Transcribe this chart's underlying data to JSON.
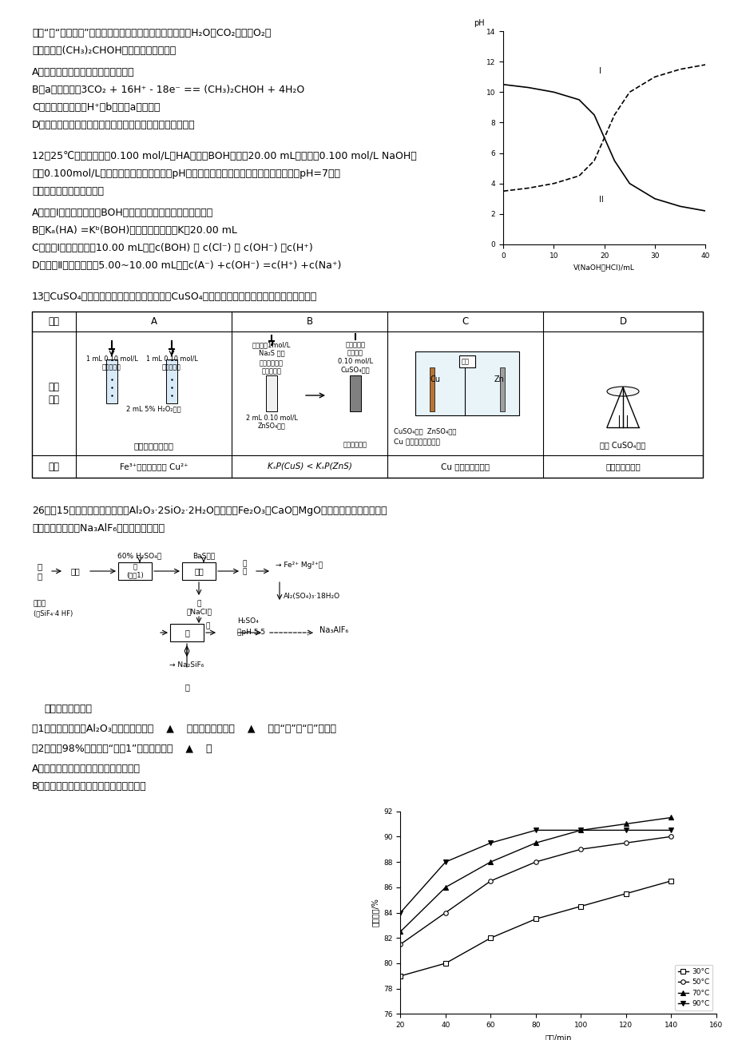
{
  "page_bg": "#ffffff",
  "ph_graph": {
    "x_label": "V(NaOH或HCl)/mL",
    "y_label": "pH",
    "curve_I_x": [
      0,
      5,
      10,
      15,
      18,
      20,
      22,
      25,
      30,
      35,
      40
    ],
    "curve_I_y": [
      10.5,
      10.3,
      10.0,
      9.5,
      8.5,
      7.0,
      5.5,
      4.0,
      3.0,
      2.5,
      2.2
    ],
    "curve_II_x": [
      0,
      5,
      10,
      15,
      18,
      20,
      22,
      25,
      30,
      35,
      40
    ],
    "curve_II_y": [
      3.5,
      3.7,
      4.0,
      4.5,
      5.5,
      7.0,
      8.5,
      10.0,
      11.0,
      11.5,
      11.8
    ]
  },
  "line_graph": {
    "x_label": "时间/min",
    "y_label": "铝浸出率/%",
    "series": [
      {
        "label": "30°C",
        "marker": "s",
        "x": [
          20,
          40,
          60,
          80,
          100,
          120,
          140
        ],
        "y": [
          79.0,
          80.0,
          82.0,
          83.5,
          84.5,
          85.5,
          86.5
        ],
        "mfc": "white"
      },
      {
        "label": "50°C",
        "marker": "o",
        "x": [
          20,
          40,
          60,
          80,
          100,
          120,
          140
        ],
        "y": [
          81.5,
          84.0,
          86.5,
          88.0,
          89.0,
          89.5,
          90.0
        ],
        "mfc": "white"
      },
      {
        "label": "70°C",
        "marker": "^",
        "x": [
          20,
          40,
          60,
          80,
          100,
          120,
          140
        ],
        "y": [
          82.5,
          86.0,
          88.0,
          89.5,
          90.5,
          91.0,
          91.5
        ],
        "mfc": "black"
      },
      {
        "label": "90°C",
        "marker": "v",
        "x": [
          20,
          40,
          60,
          80,
          100,
          120,
          140
        ],
        "y": [
          84.0,
          88.0,
          89.5,
          90.5,
          90.5,
          90.5,
          90.5
        ],
        "mfc": "black"
      }
    ]
  },
  "text_lines": {
    "t1": "树叶“的“液态阳光”电化学实验装置如图所示，该装置能将H₂O和CO₂转化为O₂和",
    "t2": "燃料异丙醇(CH₃)₂CHOH。下列说法正确的是",
    "tA": "A．该装置将化学能转化为光能和电能",
    "tB": "B．a电极反应为3CO₂ + 16H⁺ - 18e⁻ == (CH₃)₂CHOH + 4H₂O",
    "tC": "C．该装置工作时，H⁺从b极区向a极区迁移",
    "tD": "D．异丙醇可发生氧化反应、还原反应、取代反应和聚合反应",
    "q12": "12．25℃时，浓度均为0.100 mol/L的HA溶液和BOH溶液合20.00 mL，分别用0.100 mol/L NaOH溶",
    "q12b": "液、0.100mol/L盐酸进行滴定，滴定过程中pH随滴加溶液体积变化关系如图，两图像关于pH=7呈上",
    "q12c": "下对称。下列说法错误的是",
    "q12A": "A．曲线Ⅰ表示盐酸滴加到BOH溶液的过程，可用甲基橙作指示剂",
    "q12B": "B．Kₐ(HA) =Kᵇ(BOH)，交点对应横坐标K＜20.00 mL",
    "q12C": "C．曲线Ⅰ，滴加溶液到10.00 mL时：c(BOH) ＞ c(Cl⁻) ＞ c(OH⁻) ＞c(H⁺)",
    "q12D": "D．曲线Ⅱ，滴加溶液到5.00~10.00 mL时：c(A⁻) +c(OH⁻) =c(H⁺) +c(Na⁺)",
    "q13": "13．CuSO₄溶液是实验室中常用试剂。下列与CuSO₄溶液有关实验的操作和结论都一定正确的是",
    "q26": "26．（15分）由黏土（主要成分Al₂O₃·2SiO₂·2H₂O，含少量Fe₂O₃、CaO、MgO等杂质）与磷肥生产的含",
    "q26b": "氟废气生产冰晶石Na₃AlF₆的工艺流程如下：",
    "ans_pre": "请回答下列问题：",
    "ans1": "（1）冰晶石在电解Al₂O₃制铝中的作用是    ▲    ，需定期更换石墨    ▲    （填“阳”或“阴”）极。",
    "ans2": "（2）不用98%硫酸进行“反应1”的可能原因是    ▲    。",
    "ansA": "A．不易发生离子反应，造成浸出率下降",
    "ansB": "B．反应速率太快太剧烈，造成了操作危险"
  }
}
